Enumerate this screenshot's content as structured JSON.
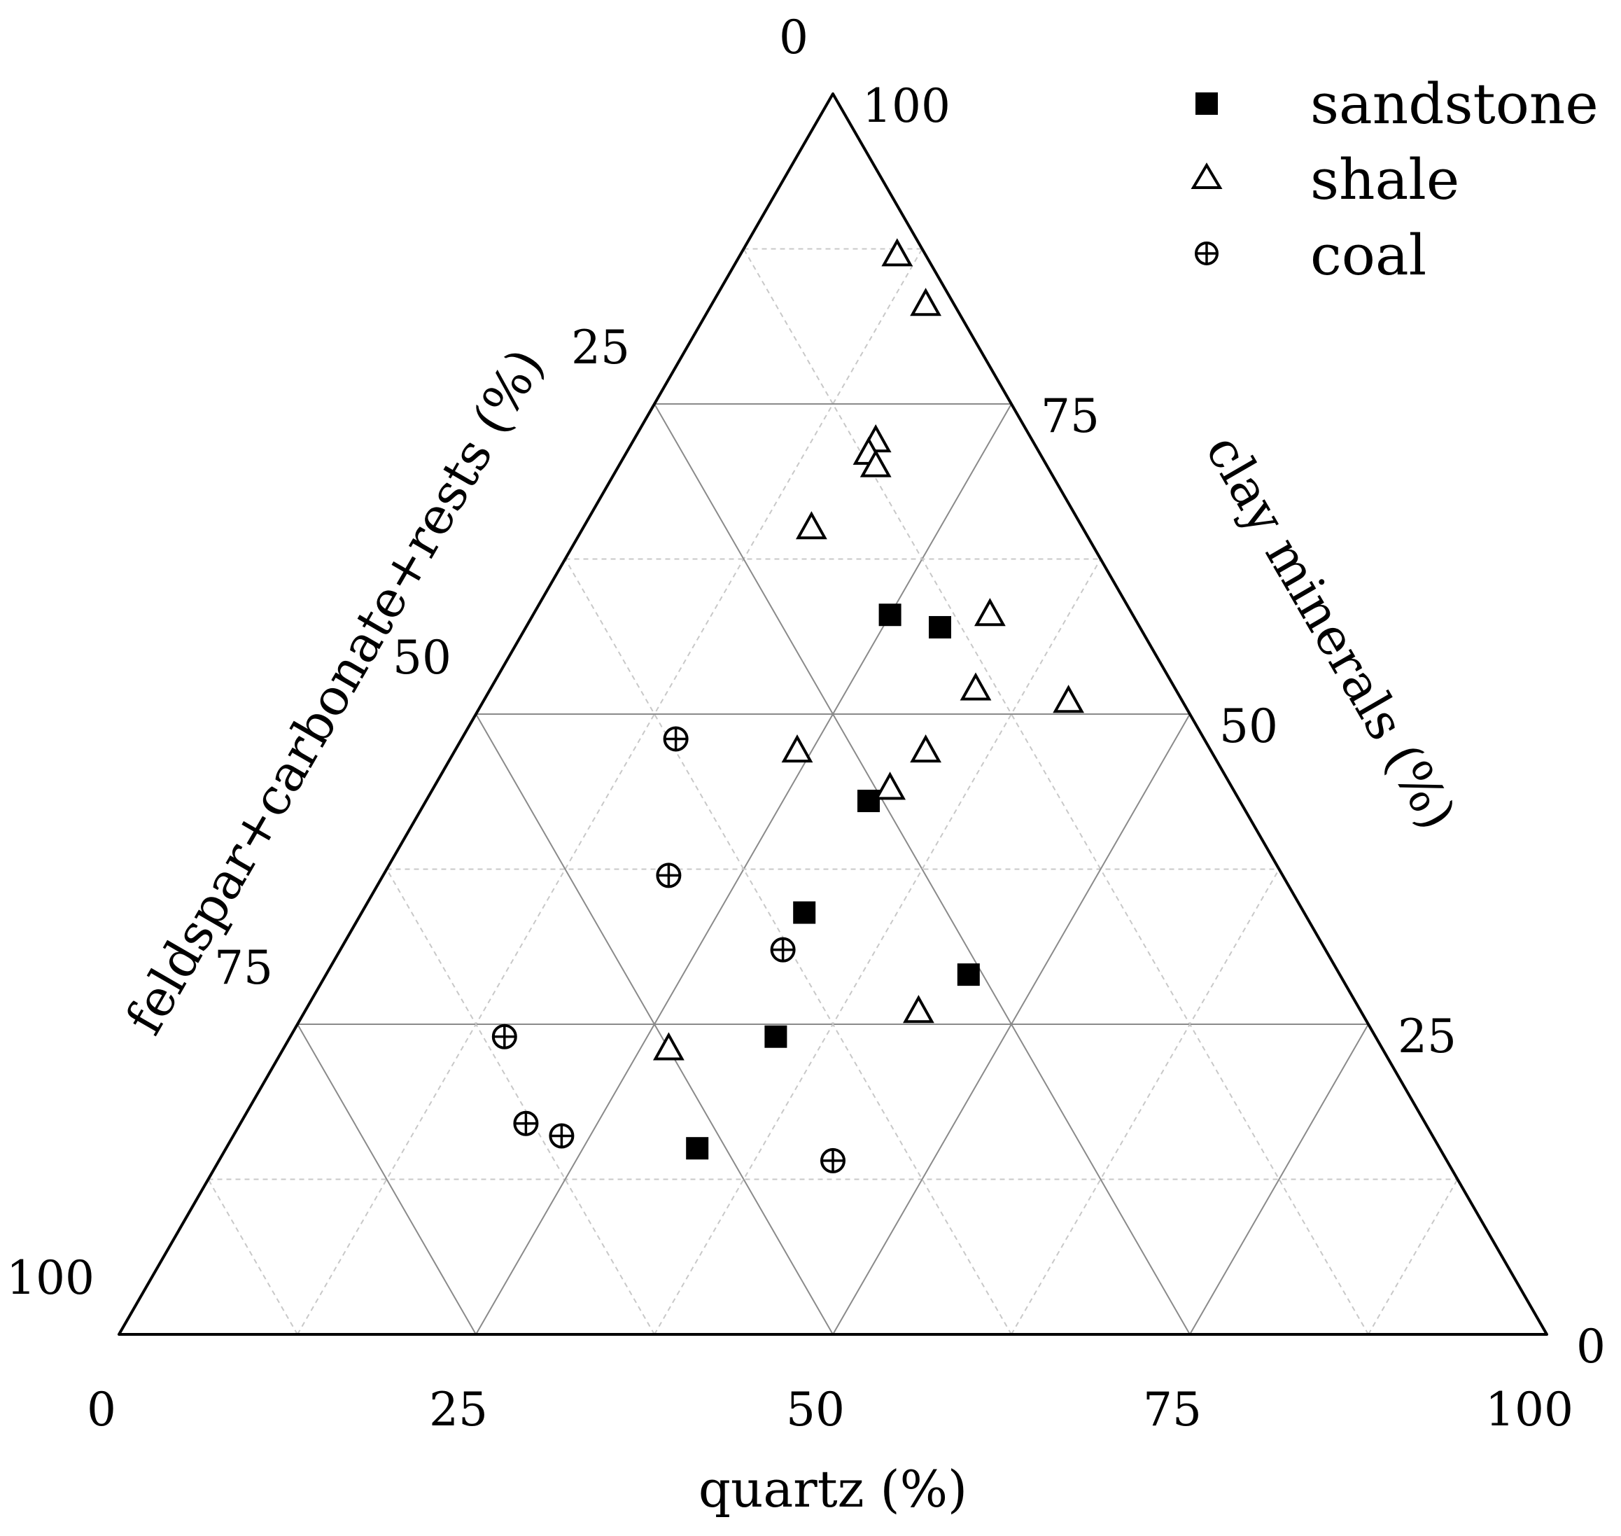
{
  "chart_data": {
    "type": "scatter",
    "subtype": "ternary",
    "axes": {
      "bottom": {
        "label": "quartz (%)",
        "ticks": [
          "0",
          "25",
          "50",
          "75",
          "100"
        ]
      },
      "left": {
        "label": "feldspar+carbonate+rests (%)",
        "ticks": [
          "0",
          "25",
          "50",
          "75",
          "100"
        ]
      },
      "right": {
        "label": "clay minerals (%)",
        "ticks": [
          "100",
          "75",
          "50",
          "25",
          "0"
        ]
      },
      "range": [
        0,
        100
      ],
      "grid": true
    },
    "legend": {
      "position": "top-right"
    },
    "series": [
      {
        "name": "sandstone",
        "marker": "filled-square",
        "color": "#000000",
        "points": [
          {
            "quartz": 25,
            "clay": 58,
            "other": 17
          },
          {
            "quartz": 29,
            "clay": 57,
            "other": 14
          },
          {
            "quartz": 31,
            "clay": 43,
            "other": 26
          },
          {
            "quartz": 34,
            "clay": 24,
            "other": 42
          },
          {
            "quartz": 31,
            "clay": 34,
            "other": 35
          },
          {
            "quartz": 45,
            "clay": 29,
            "other": 26
          },
          {
            "quartz": 33,
            "clay": 15,
            "other": 52
          }
        ]
      },
      {
        "name": "shale",
        "marker": "open-triangle",
        "color": "#000000",
        "points": [
          {
            "quartz": 11,
            "clay": 87,
            "other": 2
          },
          {
            "quartz": 15,
            "clay": 83,
            "other": 2
          },
          {
            "quartz": 17,
            "clay": 72,
            "other": 11
          },
          {
            "quartz": 17,
            "clay": 71,
            "other": 12
          },
          {
            "quartz": 18,
            "clay": 70,
            "other": 12
          },
          {
            "quartz": 16,
            "clay": 65,
            "other": 19
          },
          {
            "quartz": 32,
            "clay": 58,
            "other": 10
          },
          {
            "quartz": 34,
            "clay": 52,
            "other": 14
          },
          {
            "quartz": 41,
            "clay": 51,
            "other": 8
          },
          {
            "quartz": 24,
            "clay": 47,
            "other": 29
          },
          {
            "quartz": 33,
            "clay": 47,
            "other": 20
          },
          {
            "quartz": 32,
            "clay": 44,
            "other": 24
          },
          {
            "quartz": 43,
            "clay": 26,
            "other": 31
          },
          {
            "quartz": 27,
            "clay": 23,
            "other": 50
          }
        ]
      },
      {
        "name": "coal",
        "marker": "crossed-circle",
        "color": "#000000",
        "points": [
          {
            "quartz": 15,
            "clay": 48,
            "other": 37
          },
          {
            "quartz": 20,
            "clay": 37,
            "other": 43
          },
          {
            "quartz": 31,
            "clay": 31,
            "other": 38
          },
          {
            "quartz": 15,
            "clay": 24,
            "other": 61
          },
          {
            "quartz": 20,
            "clay": 17,
            "other": 63
          },
          {
            "quartz": 23,
            "clay": 16,
            "other": 61
          },
          {
            "quartz": 43,
            "clay": 14,
            "other": 43
          }
        ]
      }
    ]
  }
}
